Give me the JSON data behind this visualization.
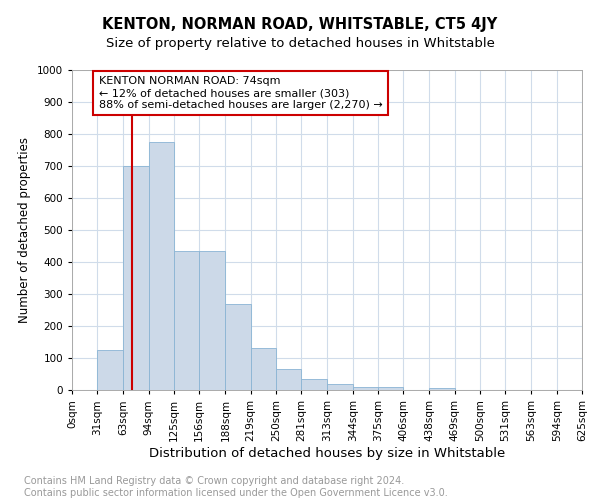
{
  "title": "KENTON, NORMAN ROAD, WHITSTABLE, CT5 4JY",
  "subtitle": "Size of property relative to detached houses in Whitstable",
  "xlabel": "Distribution of detached houses by size in Whitstable",
  "ylabel": "Number of detached properties",
  "annotation_line1": "KENTON NORMAN ROAD: 74sqm",
  "annotation_line2": "← 12% of detached houses are smaller (303)",
  "annotation_line3": "88% of semi-detached houses are larger (2,270) →",
  "property_size_sqm": 74,
  "bin_edges": [
    0,
    31,
    63,
    94,
    125,
    156,
    188,
    219,
    250,
    281,
    313,
    344,
    375,
    406,
    438,
    469,
    500,
    531,
    563,
    594,
    625
  ],
  "bin_counts": [
    0,
    125,
    700,
    775,
    435,
    435,
    270,
    130,
    65,
    35,
    20,
    10,
    10,
    0,
    5,
    0,
    0,
    0,
    0,
    0
  ],
  "bar_color": "#ccd9e8",
  "bar_edge_color": "#8ab4d4",
  "vline_color": "#cc0000",
  "annotation_box_edge_color": "#cc0000",
  "grid_color": "#d0dcea",
  "footer_text": "Contains HM Land Registry data © Crown copyright and database right 2024.\nContains public sector information licensed under the Open Government Licence v3.0.",
  "ylim": [
    0,
    1000
  ],
  "ytick_interval": 100,
  "background_color": "#ffffff",
  "title_fontsize": 10.5,
  "subtitle_fontsize": 9.5,
  "xlabel_fontsize": 9.5,
  "ylabel_fontsize": 8.5,
  "tick_fontsize": 7.5,
  "annotation_fontsize": 8,
  "footer_fontsize": 7
}
